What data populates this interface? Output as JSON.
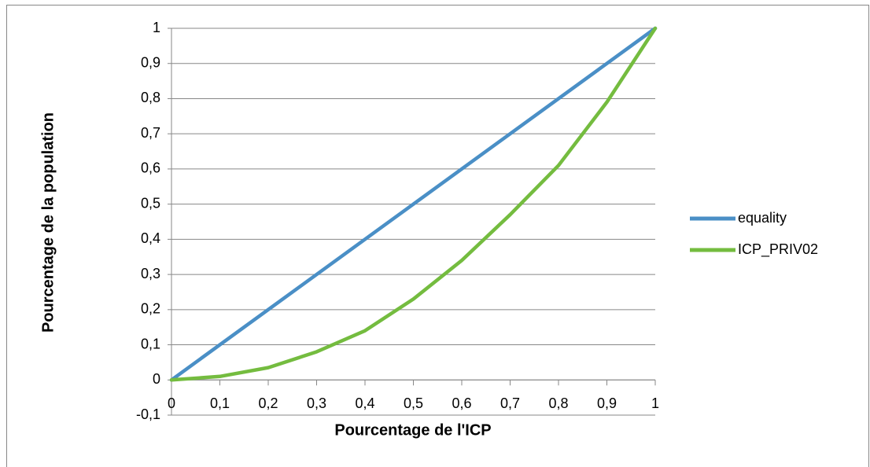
{
  "chart_data": {
    "type": "line",
    "xlabel": "Pourcentage de l'ICP",
    "ylabel": "Pourcentage de la population",
    "series": [
      {
        "name": "equality",
        "color": "#4a8fc6",
        "x": [
          0,
          1
        ],
        "values": [
          0,
          1
        ]
      },
      {
        "name": "ICP_PRIV02",
        "color": "#74bc3f",
        "x": [
          0,
          0.1,
          0.2,
          0.3,
          0.4,
          0.5,
          0.6,
          0.7,
          0.8,
          0.9,
          1
        ],
        "values": [
          0,
          0.01,
          0.035,
          0.08,
          0.14,
          0.23,
          0.34,
          0.47,
          0.61,
          0.79,
          1
        ]
      }
    ],
    "xlim": [
      0,
      1
    ],
    "xticks": [
      0,
      {
        "value": 0.1,
        "label": "0,1"
      },
      {
        "value": 0.2,
        "label": "0,2"
      },
      {
        "value": 0.3,
        "label": "0,3"
      },
      {
        "value": 0.4,
        "label": "0,4"
      },
      {
        "value": 0.5,
        "label": "0,5"
      },
      {
        "value": 0.6,
        "label": "0,6"
      },
      {
        "value": 0.7,
        "label": "0,7"
      },
      {
        "value": 0.8,
        "label": "0,8"
      },
      {
        "value": 0.9,
        "label": "0,9"
      },
      1
    ],
    "ylim": [
      -0.1,
      1
    ],
    "yticks": [
      {
        "value": -0.1,
        "label": "-0,1"
      },
      0,
      {
        "value": 0.1,
        "label": "0,1"
      },
      {
        "value": 0.2,
        "label": "0,2"
      },
      {
        "value": 0.3,
        "label": "0,3"
      },
      {
        "value": 0.4,
        "label": "0,4"
      },
      {
        "value": 0.5,
        "label": "0,5"
      },
      {
        "value": 0.6,
        "label": "0,6"
      },
      {
        "value": 0.7,
        "label": "0,7"
      },
      {
        "value": 0.8,
        "label": "0,8"
      },
      {
        "value": 0.9,
        "label": "0,9"
      },
      1
    ],
    "grid": true,
    "legend": "right"
  }
}
